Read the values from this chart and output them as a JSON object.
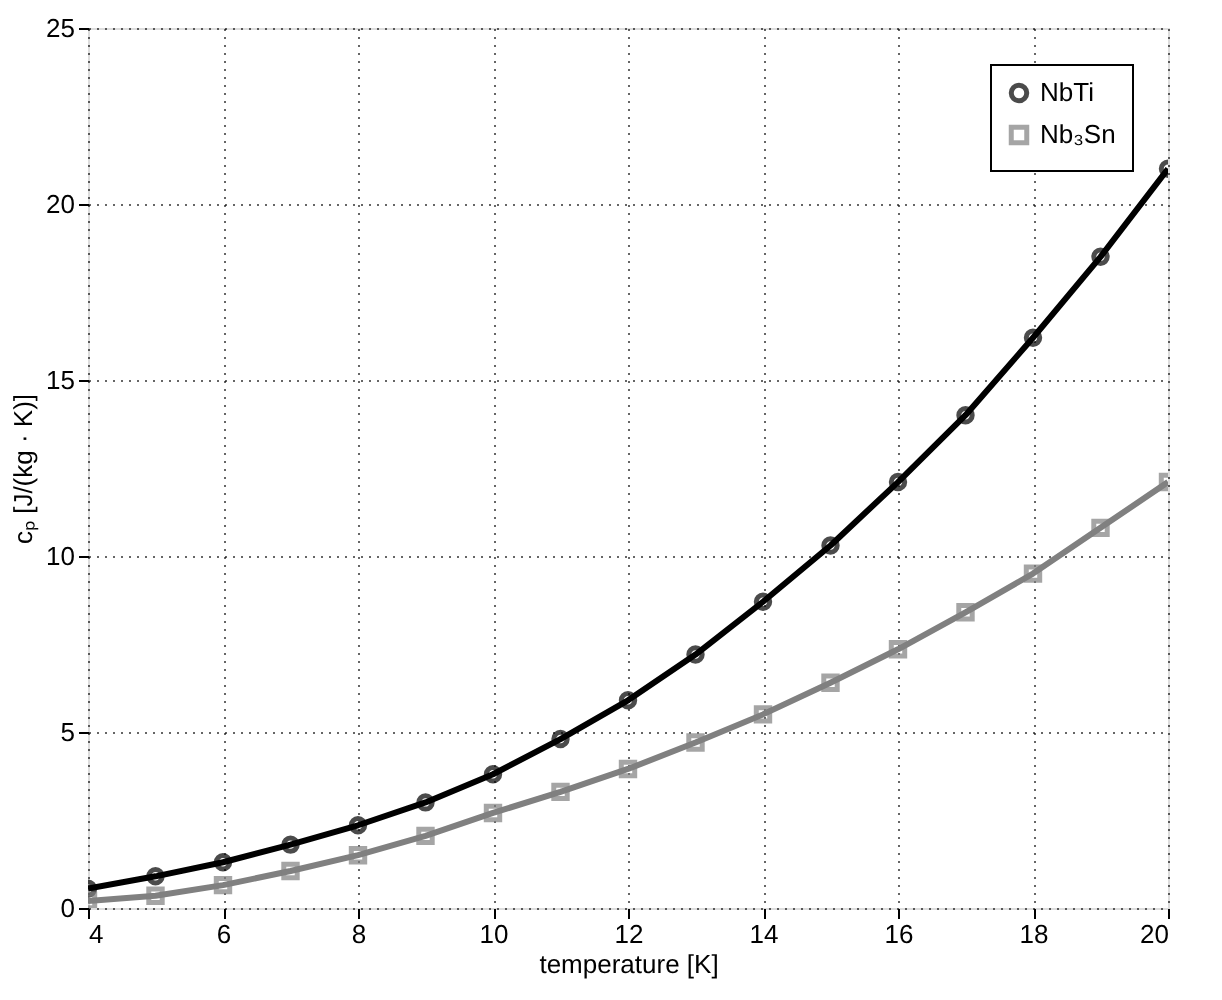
{
  "chart_data": {
    "type": "line",
    "xlabel": "temperature [K]",
    "ylabel": "cₚ [J/(kg · K)]",
    "x": [
      4,
      5,
      6,
      7,
      8,
      9,
      10,
      11,
      12,
      13,
      14,
      15,
      16,
      17,
      18,
      19,
      20
    ],
    "series": [
      {
        "name": "NbTi",
        "color": "#000000",
        "marker": "circle",
        "values": [
          0.55,
          0.9,
          1.3,
          1.8,
          2.35,
          3.0,
          3.8,
          4.8,
          5.9,
          7.2,
          8.7,
          10.3,
          12.1,
          14.0,
          16.2,
          18.5,
          21.0
        ]
      },
      {
        "name": "Nb₃Sn",
        "color": "#808080",
        "marker": "square",
        "values": [
          0.2,
          0.35,
          0.65,
          1.05,
          1.5,
          2.05,
          2.7,
          3.3,
          3.95,
          4.7,
          5.5,
          6.4,
          7.35,
          8.4,
          9.5,
          10.8,
          12.1
        ]
      }
    ],
    "xlim": [
      4,
      20
    ],
    "xticks": [
      4,
      6,
      8,
      10,
      12,
      14,
      16,
      18,
      20
    ],
    "ylim": [
      0,
      25
    ],
    "yticks": [
      0,
      5,
      10,
      15,
      20,
      25
    ],
    "grid": true,
    "legend": "top right",
    "line_style": "solid"
  }
}
